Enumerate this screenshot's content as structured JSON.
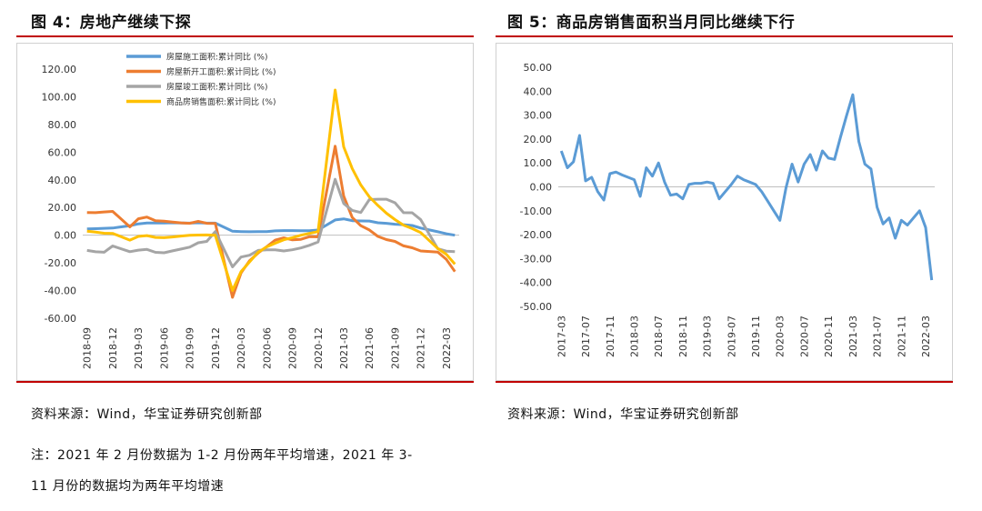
{
  "left": {
    "title": "图 4：房地产继续下探",
    "source": "资料来源：Wind，华宝证券研究创新部",
    "note_line1": "注：2021 年 2 月份数据为 1-2 月份两年平均增速，2021 年 3-",
    "note_line2": "11 月份的数据均为两年平均增速"
  },
  "right": {
    "title": "图 5：商品房销售面积当月同比继续下行",
    "source": "资料来源：Wind，华宝证券研究创新部"
  },
  "colors": {
    "rule": "#c00000",
    "blue": "#5b9bd5",
    "orange": "#ed7d31",
    "gray": "#a5a5a5",
    "yellow": "#ffc000"
  },
  "chart_data": [
    {
      "type": "line",
      "title": "",
      "ylim": [
        -60,
        120
      ],
      "yticks": [
        "120.00",
        "100.00",
        "80.00",
        "60.00",
        "40.00",
        "20.00",
        "0.00",
        "-20.00",
        "-40.00",
        "-60.00"
      ],
      "ytick_values": [
        120,
        100,
        80,
        60,
        40,
        20,
        0,
        -20,
        -40,
        -60
      ],
      "x": [
        "2018-09",
        "2018-10",
        "2018-11",
        "2018-12",
        "2019-01",
        "2019-02",
        "2019-03",
        "2019-04",
        "2019-05",
        "2019-06",
        "2019-07",
        "2019-08",
        "2019-09",
        "2019-10",
        "2019-11",
        "2019-12",
        "2020-01",
        "2020-02",
        "2020-03",
        "2020-04",
        "2020-05",
        "2020-06",
        "2020-07",
        "2020-08",
        "2020-09",
        "2020-10",
        "2020-11",
        "2020-12",
        "2021-01",
        "2021-02",
        "2021-03",
        "2021-04",
        "2021-05",
        "2021-06",
        "2021-07",
        "2021-08",
        "2021-09",
        "2021-10",
        "2021-11",
        "2021-12",
        "2022-01",
        "2022-02",
        "2022-03",
        "2022-04"
      ],
      "xticks": [
        "2018-09",
        "2018-12",
        "2019-03",
        "2019-06",
        "2019-09",
        "2019-12",
        "2020-03",
        "2020-06",
        "2020-09",
        "2020-12",
        "2021-03",
        "2021-06",
        "2021-09",
        "2021-12",
        "2022-03"
      ],
      "legend_position": "top",
      "series": [
        {
          "name": "房屋施工面积:累计同比 (%)",
          "color": "#5b9bd5",
          "values": [
            4.5,
            4.7,
            5.0,
            5.2,
            6.0,
            6.8,
            8.2,
            8.8,
            8.8,
            8.8,
            9.0,
            8.8,
            8.7,
            9.0,
            8.7,
            8.7,
            null,
            2.9,
            2.6,
            2.5,
            2.6,
            2.6,
            3.1,
            3.3,
            3.3,
            3.2,
            3.2,
            3.7,
            null,
            11.0,
            11.8,
            10.5,
            10.3,
            10.2,
            9.0,
            8.6,
            7.9,
            7.6,
            7.0,
            5.2,
            null,
            2.5,
            1.0,
            0.0
          ]
        },
        {
          "name": "房屋新开工面积:累计同比 (%)",
          "color": "#ed7d31",
          "values": [
            16.4,
            16.3,
            16.8,
            17.2,
            null,
            6.0,
            11.9,
            13.1,
            10.5,
            10.1,
            9.5,
            8.9,
            8.6,
            10.0,
            8.6,
            8.5,
            null,
            -44.9,
            -27.2,
            -18.4,
            -12.8,
            -8.3,
            -3.6,
            -1.9,
            -3.4,
            -3.0,
            -1.1,
            -1.2,
            null,
            64.3,
            28.2,
            12.8,
            6.9,
            3.8,
            -0.9,
            -3.2,
            -4.5,
            -7.7,
            -9.1,
            -11.4,
            null,
            -12.2,
            -17.5,
            -26.3
          ]
        },
        {
          "name": "房屋竣工面积:累计同比 (%)",
          "color": "#a5a5a5",
          "values": [
            -11.0,
            -12.0,
            -12.3,
            -7.8,
            null,
            -11.9,
            -10.8,
            -10.3,
            -12.4,
            -12.7,
            -11.3,
            -10.0,
            -8.6,
            -5.5,
            -4.5,
            2.6,
            null,
            -22.9,
            -15.8,
            -14.5,
            -11.0,
            -10.5,
            -10.6,
            -11.4,
            -10.5,
            -9.2,
            -7.3,
            -4.9,
            null,
            40.4,
            22.9,
            17.9,
            16.4,
            25.7,
            26.0,
            26.0,
            23.4,
            16.3,
            16.2,
            11.2,
            null,
            -9.8,
            -11.5,
            -11.9
          ]
        },
        {
          "name": "商品房销售面积:累计同比 (%)",
          "color": "#ffc000",
          "values": [
            2.9,
            2.2,
            1.4,
            1.3,
            null,
            -3.6,
            -0.9,
            -0.3,
            -1.6,
            -1.8,
            -1.3,
            -0.6,
            -0.1,
            0.1,
            0.2,
            -0.1,
            null,
            -39.9,
            -26.3,
            -19.3,
            -12.3,
            -8.4,
            -5.8,
            -3.3,
            -1.8,
            0.0,
            1.3,
            2.6,
            null,
            104.9,
            63.8,
            48.1,
            36.3,
            27.7,
            21.5,
            15.9,
            11.3,
            7.3,
            4.8,
            1.9,
            null,
            -9.6,
            -13.8,
            -20.9
          ]
        }
      ]
    },
    {
      "type": "line",
      "title": "",
      "ylim": [
        -50,
        50
      ],
      "yticks": [
        "50.00",
        "40.00",
        "30.00",
        "20.00",
        "10.00",
        "0.00",
        "-10.00",
        "-20.00",
        "-30.00",
        "-40.00",
        "-50.00"
      ],
      "ytick_values": [
        50,
        40,
        30,
        20,
        10,
        0,
        -10,
        -20,
        -30,
        -40,
        -50
      ],
      "x": [
        "2017-03",
        "2017-04",
        "2017-05",
        "2017-06",
        "2017-07",
        "2017-08",
        "2017-09",
        "2017-10",
        "2017-11",
        "2017-12",
        "2018-01",
        "2018-02",
        "2018-03",
        "2018-04",
        "2018-05",
        "2018-06",
        "2018-07",
        "2018-08",
        "2018-09",
        "2018-10",
        "2018-11",
        "2018-12",
        "2019-01",
        "2019-02",
        "2019-03",
        "2019-04",
        "2019-05",
        "2019-06",
        "2019-07",
        "2019-08",
        "2019-09",
        "2019-10",
        "2019-11",
        "2019-12",
        "2020-01",
        "2020-02",
        "2020-03",
        "2020-04",
        "2020-05",
        "2020-06",
        "2020-07",
        "2020-08",
        "2020-09",
        "2020-10",
        "2020-11",
        "2020-12",
        "2021-01",
        "2021-02",
        "2021-03",
        "2021-04",
        "2021-05",
        "2021-06",
        "2021-07",
        "2021-08",
        "2021-09",
        "2021-10",
        "2021-11",
        "2021-12",
        "2022-01",
        "2022-02",
        "2022-03",
        "2022-04"
      ],
      "xticks": [
        "2017-03",
        "2017-07",
        "2017-11",
        "2018-03",
        "2018-07",
        "2018-11",
        "2019-03",
        "2019-07",
        "2019-11",
        "2020-03",
        "2020-07",
        "2020-11",
        "2021-03",
        "2021-07",
        "2021-11",
        "2022-03"
      ],
      "series": [
        {
          "name": "",
          "color": "#5b9bd5",
          "values": [
            15.0,
            8.0,
            10.5,
            21.5,
            2.5,
            4.0,
            -2.0,
            -5.5,
            5.5,
            6.2,
            5.0,
            4.0,
            3.0,
            -4.0,
            8.0,
            4.5,
            10.0,
            2.0,
            -3.5,
            -3.0,
            -5.0,
            1.0,
            1.5,
            1.5,
            2.0,
            1.5,
            -5.0,
            -2.0,
            1.0,
            4.5,
            3.0,
            2.0,
            1.0,
            -2.0,
            -6.0,
            -10.0,
            -14.0,
            -0.5,
            9.5,
            2.0,
            9.5,
            13.5,
            7.0,
            15.0,
            12.0,
            11.5,
            21.0,
            30.0,
            38.5,
            19.0,
            9.5,
            7.5,
            -8.5,
            -15.5,
            -13.0,
            -21.5,
            -14.0,
            -16.0,
            -13.0,
            -10.0,
            -17.0,
            -39.0
          ]
        }
      ]
    }
  ]
}
